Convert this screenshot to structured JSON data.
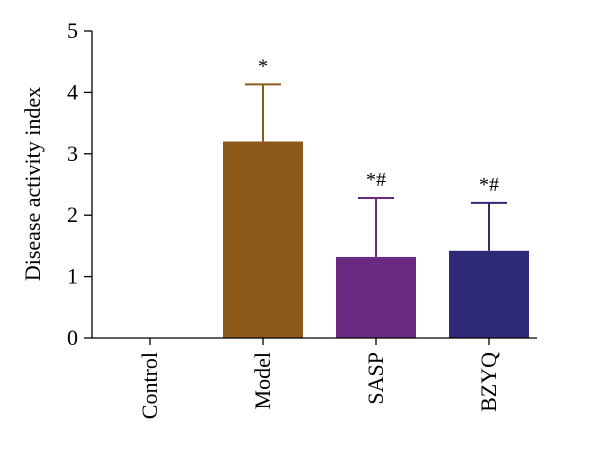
{
  "chart_data": {
    "type": "bar",
    "title": "",
    "xlabel": "",
    "ylabel": "Disease activity index",
    "ylim": [
      0,
      5
    ],
    "yticks": [
      0,
      1,
      2,
      3,
      4,
      5
    ],
    "grid": false,
    "categories": [
      "Control",
      "Model",
      "SASP",
      "BZYQ"
    ],
    "values": [
      0,
      3.2,
      1.32,
      1.42
    ],
    "errors": [
      0,
      0.93,
      0.96,
      0.78
    ],
    "annotations": [
      "",
      "*",
      "*#",
      "*#"
    ],
    "colors": [
      "#8a5a1c",
      "#8e5a1c",
      "#6b2a82",
      "#2f2a78"
    ]
  }
}
